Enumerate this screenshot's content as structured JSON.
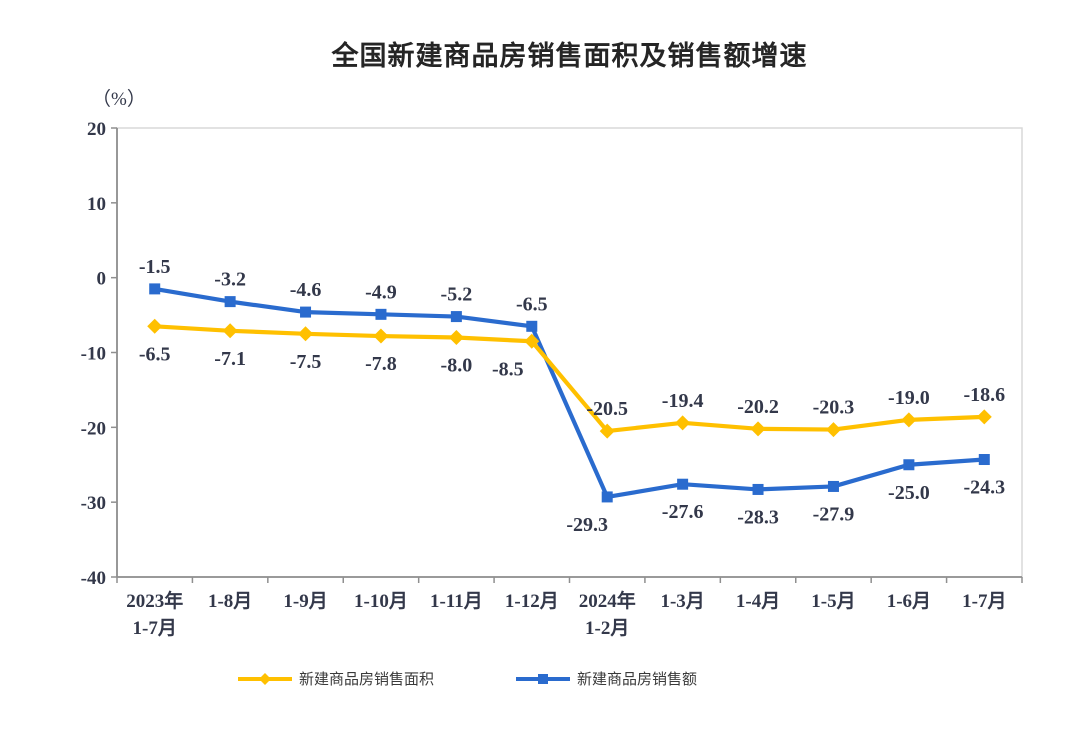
{
  "page": {
    "background": "#ffffff"
  },
  "chart_data": {
    "type": "line",
    "title": "全国新建商品房销售面积及销售额增速",
    "unit_label": "（%）",
    "ylim": [
      -40,
      20
    ],
    "yticks": [
      20,
      10,
      0,
      -10,
      -20,
      -30,
      -40
    ],
    "grid": false,
    "legend_position": "bottom",
    "categories": [
      [
        "2023年",
        "1-7月"
      ],
      [
        "1-8月"
      ],
      [
        "1-9月"
      ],
      [
        "1-10月"
      ],
      [
        "1-11月"
      ],
      [
        "1-12月"
      ],
      [
        "2024年",
        "1-2月"
      ],
      [
        "1-3月"
      ],
      [
        "1-4月"
      ],
      [
        "1-5月"
      ],
      [
        "1-6月"
      ],
      [
        "1-7月"
      ]
    ],
    "series": [
      {
        "name": "新建商品房销售面积",
        "color": "#FFC000",
        "marker": "diamond",
        "values": [
          -6.5,
          -7.1,
          -7.5,
          -7.8,
          -8.0,
          -8.5,
          -20.5,
          -19.4,
          -20.2,
          -20.3,
          -19.0,
          -18.6
        ],
        "label_side": [
          "below",
          "below",
          "below",
          "below",
          "below",
          "below",
          "above",
          "above",
          "above",
          "above",
          "above",
          "above"
        ]
      },
      {
        "name": "新建商品房销售额",
        "color": "#2A6BCE",
        "marker": "square",
        "values": [
          -1.5,
          -3.2,
          -4.6,
          -4.9,
          -5.2,
          -6.5,
          -29.3,
          -27.6,
          -28.3,
          -27.9,
          -25.0,
          -24.3
        ],
        "label_side": [
          "above",
          "above",
          "above",
          "above",
          "above",
          "above",
          "below",
          "below",
          "below",
          "below",
          "below",
          "below"
        ]
      }
    ],
    "colors": {
      "axis_line": "#8f8f8f",
      "plot_border": "#d9d9d9",
      "tick_text": "#33384a",
      "data_label_text": "#33384a"
    }
  }
}
